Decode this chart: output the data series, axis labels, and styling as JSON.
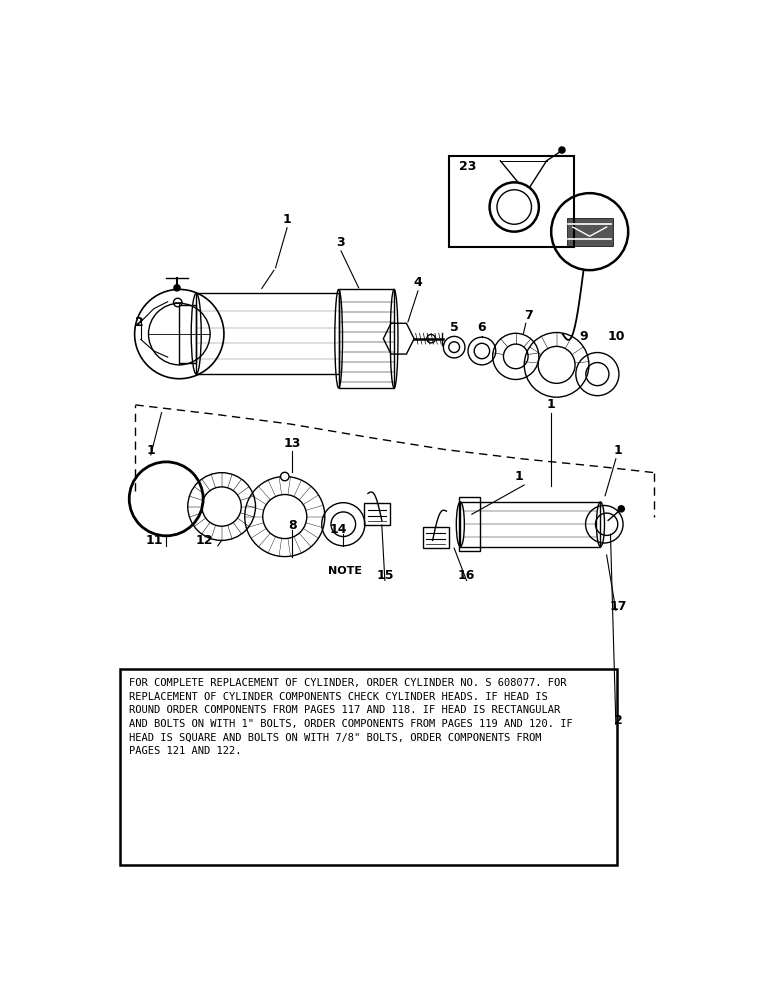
{
  "bg_color": "#ffffff",
  "line_color": "#000000",
  "note_text": "FOR COMPLETE REPLACEMENT OF CYLINDER, ORDER CYLINDER NO. S 608077. FOR\nREPLACEMENT OF CYLINDER COMPONENTS CHECK CYLINDER HEADS. IF HEAD IS\nROUND ORDER COMPONENTS FROM PAGES 117 AND 118. IF HEAD IS RECTANGULAR\nAND BOLTS ON WITH 1\" BOLTS, ORDER COMPONENTS FROM PAGES 119 AND 120. IF\nHEAD IS SQUARE AND BOLTS ON WITH 7/8\" BOLTS, ORDER COMPONENTS FROM\nPAGES 121 AND 122."
}
